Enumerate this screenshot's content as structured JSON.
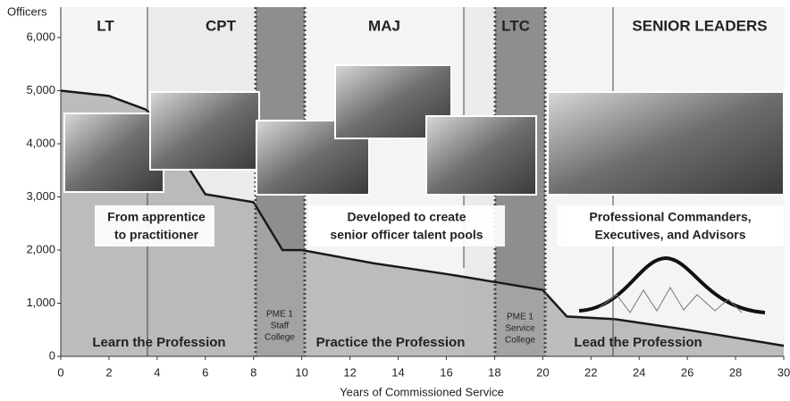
{
  "chart_data": {
    "type": "area",
    "y_label": "Officers",
    "x_label": "Years of Commissioned Service",
    "x": [
      0,
      2,
      3.5,
      3.8,
      5.4,
      6,
      8,
      9.2,
      10,
      13,
      16,
      18,
      20,
      21,
      23,
      26,
      30
    ],
    "values": [
      5000,
      4900,
      4650,
      4550,
      3480,
      3050,
      2900,
      2000,
      2000,
      1750,
      1550,
      1400,
      1250,
      750,
      700,
      500,
      200
    ],
    "color": "#a9a9a9",
    "line_color": "#1a1a1a",
    "xlim": [
      0,
      30
    ],
    "ylim": [
      0,
      6000
    ],
    "xticks": [
      0,
      2,
      4,
      6,
      8,
      10,
      12,
      14,
      16,
      18,
      20,
      22,
      24,
      26,
      28,
      30
    ],
    "yticks": [
      0,
      {
        "value": 1000,
        "label": "1,000"
      },
      {
        "value": 2000,
        "label": "2,000"
      },
      {
        "value": 3000,
        "label": "3,000"
      },
      {
        "value": 4000,
        "label": "4,000"
      },
      {
        "value": 5000,
        "label": "5,000"
      },
      {
        "value": 6000,
        "label": "6,000"
      }
    ],
    "ranks": [
      "LT",
      "CPT",
      "MAJ",
      "LTC",
      "SENIOR LEADERS"
    ],
    "captions": [
      [
        "From apprentice",
        "to practitioner"
      ],
      [
        "Developed to create",
        "senior officer talent pools"
      ],
      [
        "Professional Commanders,",
        "Executives, and Advisors"
      ]
    ],
    "phases": [
      "Learn the Profession",
      "Practice the Profession",
      "Lead the Profession"
    ],
    "schools": [
      [
        "PME 1",
        "Staff",
        "College"
      ],
      [
        "PME 1",
        "Service",
        "College"
      ]
    ]
  }
}
